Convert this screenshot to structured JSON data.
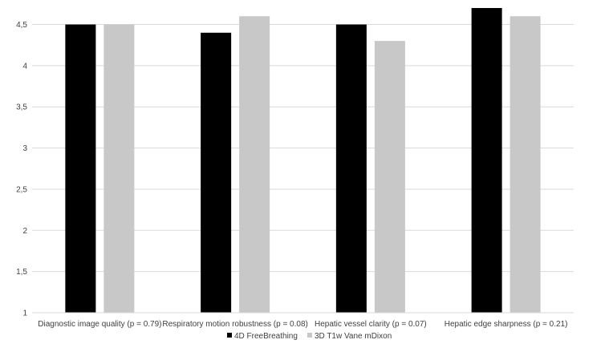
{
  "chart_data": {
    "type": "bar",
    "categories": [
      "Diagnostic image quality (p = 0.79)",
      "Respiratory motion robustness (p = 0.08)",
      "Hepatic vessel clarity (p = 0.07)",
      "Hepatic edge sharpness (p = 0.21)"
    ],
    "series": [
      {
        "name": "4D FreeBreathing",
        "color": "#000000",
        "values": [
          4.5,
          4.4,
          4.5,
          4.7
        ]
      },
      {
        "name": "3D T1w Vane mDixon",
        "color": "#c8c8c8",
        "values": [
          4.5,
          4.6,
          4.3,
          4.6
        ]
      }
    ],
    "ylim": [
      1,
      4.7
    ],
    "yticks": [
      1,
      1.5,
      2,
      2.5,
      3,
      3.5,
      4,
      4.5
    ],
    "ytick_labels": [
      "1",
      "1,5",
      "2",
      "2,5",
      "3",
      "3,5",
      "4",
      "4,5"
    ],
    "grid": true,
    "legend_position": "bottom-center",
    "title": "",
    "xlabel": "",
    "ylabel": ""
  }
}
